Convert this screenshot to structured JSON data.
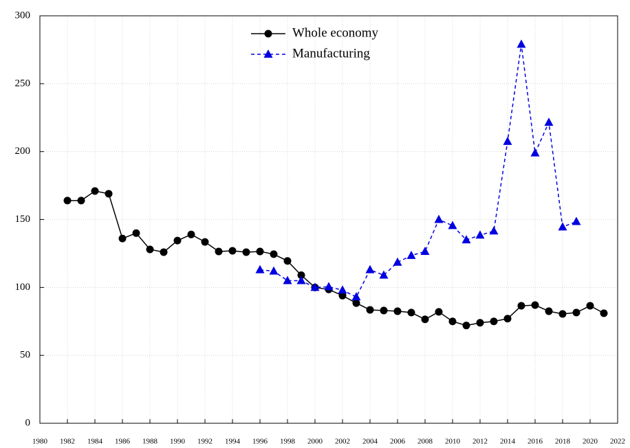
{
  "chart_data": {
    "type": "line",
    "x": [
      1982,
      1983,
      1984,
      1985,
      1986,
      1987,
      1988,
      1989,
      1990,
      1991,
      1992,
      1993,
      1994,
      1995,
      1996,
      1997,
      1998,
      1999,
      2000,
      2001,
      2002,
      2003,
      2004,
      2005,
      2006,
      2007,
      2008,
      2009,
      2010,
      2011,
      2012,
      2013,
      2014,
      2015,
      2016,
      2017,
      2018,
      2019,
      2020,
      2021
    ],
    "series": [
      {
        "name": "Whole economy",
        "color": "#000000",
        "marker": "circle",
        "dashed": false,
        "values": [
          164,
          164,
          171,
          169,
          136,
          140,
          128,
          126,
          134.5,
          139,
          133.5,
          126.5,
          127,
          126,
          126.5,
          124.5,
          119.5,
          109,
          100,
          98.5,
          94,
          88.5,
          83.5,
          83,
          82.5,
          81.5,
          76.5,
          82,
          75,
          72,
          74,
          75,
          77,
          86.5,
          87,
          82.5,
          80.5,
          81.5,
          86.5,
          81
        ]
      },
      {
        "name": "Manufacturing",
        "color": "#0000e0",
        "marker": "triangle",
        "dashed": true,
        "values": [
          null,
          null,
          null,
          null,
          null,
          null,
          null,
          null,
          null,
          null,
          null,
          null,
          null,
          null,
          113,
          112,
          105,
          105,
          100,
          100.5,
          98,
          93,
          113,
          109,
          118.5,
          123.5,
          126.5,
          150,
          145.5,
          135,
          138.5,
          141.5,
          207.5,
          279,
          199,
          221.5,
          144.5,
          148.5,
          null,
          null
        ]
      }
    ],
    "xlim": [
      1980,
      2022
    ],
    "xticks": [
      1980,
      1982,
      1984,
      1986,
      1988,
      1990,
      1992,
      1994,
      1996,
      1998,
      2000,
      2002,
      2004,
      2006,
      2008,
      2010,
      2012,
      2014,
      2016,
      2018,
      2020,
      2022
    ],
    "ylim": [
      0,
      300
    ],
    "yticks": [
      0,
      50,
      100,
      150,
      200,
      250,
      300
    ],
    "grid": true,
    "legend": "top"
  }
}
